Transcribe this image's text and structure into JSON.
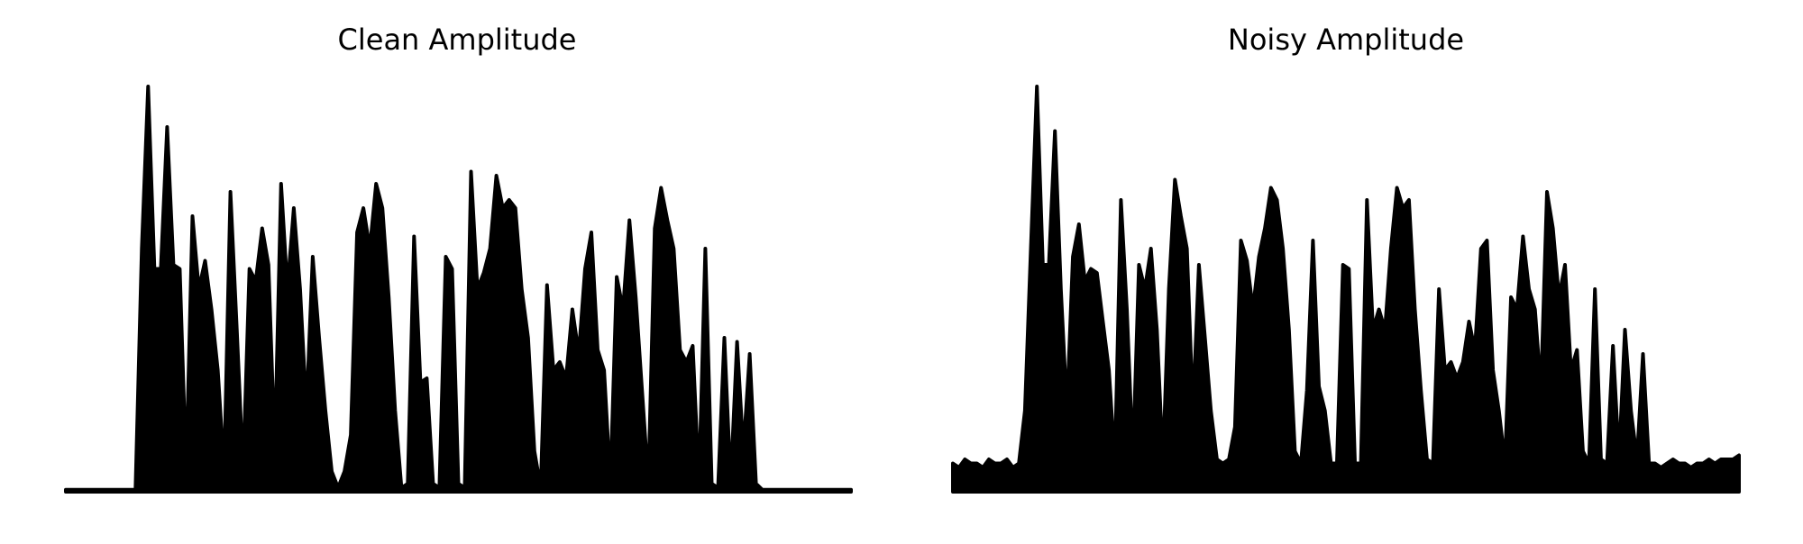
{
  "chart_data": [
    {
      "type": "area",
      "title": "Clean Amplitude",
      "color": "#000000",
      "values": [
        0.005,
        0.005,
        0.005,
        0.005,
        0.005,
        0.005,
        0.005,
        0.005,
        0.005,
        0.005,
        0.005,
        0.005,
        0.6,
        1.0,
        0.55,
        0.55,
        0.9,
        0.56,
        0.55,
        0.05,
        0.68,
        0.5,
        0.57,
        0.45,
        0.3,
        0.05,
        0.74,
        0.4,
        0.05,
        0.55,
        0.52,
        0.65,
        0.56,
        0.1,
        0.76,
        0.5,
        0.7,
        0.5,
        0.2,
        0.58,
        0.38,
        0.2,
        0.05,
        0.01,
        0.05,
        0.14,
        0.64,
        0.7,
        0.6,
        0.76,
        0.7,
        0.48,
        0.2,
        0.01,
        0.02,
        0.63,
        0.27,
        0.28,
        0.02,
        0.01,
        0.58,
        0.55,
        0.02,
        0.01,
        0.79,
        0.5,
        0.54,
        0.6,
        0.78,
        0.7,
        0.72,
        0.7,
        0.5,
        0.38,
        0.1,
        0.01,
        0.51,
        0.3,
        0.32,
        0.28,
        0.45,
        0.34,
        0.55,
        0.64,
        0.35,
        0.3,
        0.02,
        0.53,
        0.45,
        0.67,
        0.48,
        0.25,
        0.02,
        0.65,
        0.75,
        0.67,
        0.6,
        0.35,
        0.32,
        0.36,
        0.02,
        0.6,
        0.02,
        0.01,
        0.38,
        0.02,
        0.37,
        0.1,
        0.34,
        0.02,
        0.005,
        0.005,
        0.005,
        0.005,
        0.005,
        0.005,
        0.005,
        0.005,
        0.005,
        0.005,
        0.005,
        0.005,
        0.005,
        0.005,
        0.005
      ]
    },
    {
      "type": "area",
      "title": "Noisy Amplitude",
      "color": "#000000",
      "values": [
        0.07,
        0.06,
        0.08,
        0.07,
        0.07,
        0.06,
        0.08,
        0.07,
        0.07,
        0.08,
        0.06,
        0.07,
        0.2,
        0.6,
        1.0,
        0.56,
        0.56,
        0.89,
        0.5,
        0.2,
        0.58,
        0.66,
        0.52,
        0.55,
        0.54,
        0.42,
        0.3,
        0.07,
        0.72,
        0.45,
        0.08,
        0.56,
        0.5,
        0.6,
        0.4,
        0.07,
        0.5,
        0.77,
        0.68,
        0.6,
        0.2,
        0.56,
        0.38,
        0.2,
        0.08,
        0.07,
        0.08,
        0.16,
        0.62,
        0.57,
        0.45,
        0.58,
        0.65,
        0.75,
        0.72,
        0.6,
        0.4,
        0.1,
        0.07,
        0.25,
        0.62,
        0.26,
        0.2,
        0.07,
        0.07,
        0.56,
        0.55,
        0.07,
        0.07,
        0.72,
        0.4,
        0.45,
        0.4,
        0.6,
        0.75,
        0.7,
        0.72,
        0.45,
        0.25,
        0.08,
        0.07,
        0.5,
        0.3,
        0.32,
        0.28,
        0.32,
        0.42,
        0.35,
        0.6,
        0.62,
        0.3,
        0.2,
        0.07,
        0.48,
        0.45,
        0.63,
        0.5,
        0.45,
        0.25,
        0.74,
        0.65,
        0.48,
        0.56,
        0.3,
        0.35,
        0.1,
        0.07,
        0.5,
        0.08,
        0.07,
        0.36,
        0.08,
        0.4,
        0.2,
        0.08,
        0.34,
        0.07,
        0.07,
        0.06,
        0.07,
        0.08,
        0.07,
        0.07,
        0.06,
        0.07,
        0.07,
        0.08,
        0.07,
        0.08,
        0.08,
        0.08,
        0.09
      ]
    }
  ]
}
